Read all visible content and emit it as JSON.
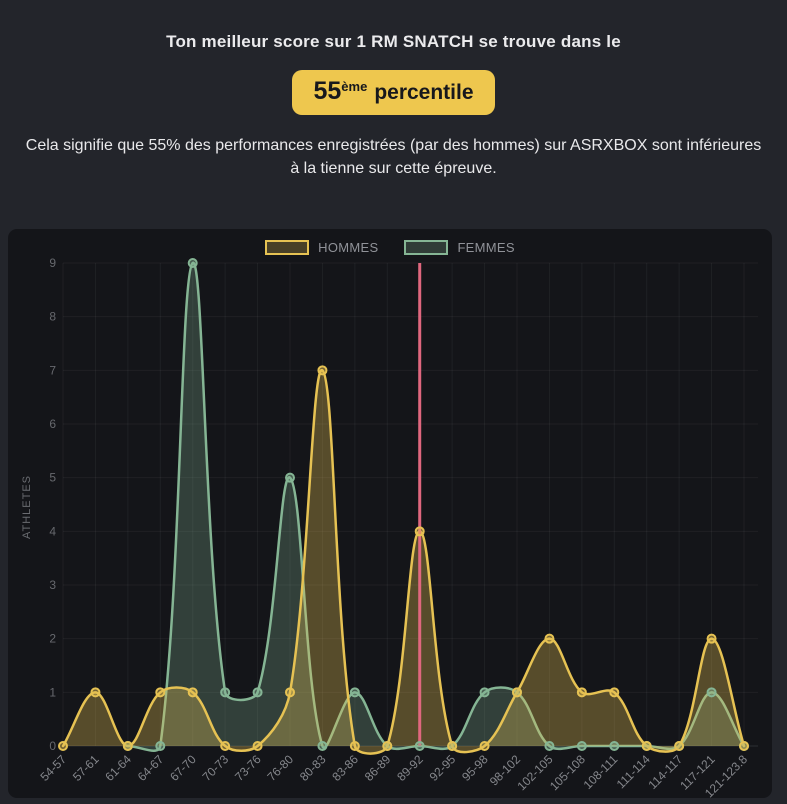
{
  "header": {
    "title": "Ton meilleur score sur 1 RM SNATCH se trouve dans le",
    "badge": {
      "value": "55",
      "ordinal_suffix": "ème",
      "label": "percentile"
    },
    "description": "Cela signifie que 55% des performances enregistrées (par des hommes) sur ASRXBOX sont inférieures à la tienne sur cette épreuve."
  },
  "colors": {
    "badge_bg": "#eec74e",
    "badge_text": "#17181c",
    "hommes": "#e6c253",
    "femmes": "#85b594",
    "percentile_line": "#e0677f"
  },
  "chart_data": {
    "type": "area",
    "title": "",
    "xlabel": "",
    "ylabel": "ATHLETES",
    "ylim": [
      0,
      9
    ],
    "yticks": [
      0,
      1,
      2,
      3,
      4,
      5,
      6,
      7,
      8,
      9
    ],
    "grid": true,
    "legend_position": "top",
    "categories": [
      "54-57",
      "57-61",
      "61-64",
      "64-67",
      "67-70",
      "70-73",
      "73-76",
      "76-80",
      "80-83",
      "83-86",
      "86-89",
      "89-92",
      "92-95",
      "95-98",
      "98-102",
      "102-105",
      "105-108",
      "108-111",
      "111-114",
      "114-117",
      "117-121",
      "121-123.8"
    ],
    "series": [
      {
        "name": "HOMMES",
        "color": "#e6c253",
        "values": [
          0,
          1,
          0,
          1,
          1,
          0,
          0,
          1,
          7,
          0,
          0,
          4,
          0,
          0,
          1,
          2,
          1,
          1,
          0,
          0,
          2,
          0
        ]
      },
      {
        "name": "FEMMES",
        "color": "#85b594",
        "values": [
          null,
          null,
          0,
          0,
          9,
          1,
          1,
          5,
          0,
          1,
          0,
          0,
          0,
          1,
          1,
          0,
          0,
          0,
          0,
          0,
          1,
          0
        ]
      }
    ],
    "percentile_line": {
      "category": "89-92",
      "color": "#e0677f"
    }
  }
}
